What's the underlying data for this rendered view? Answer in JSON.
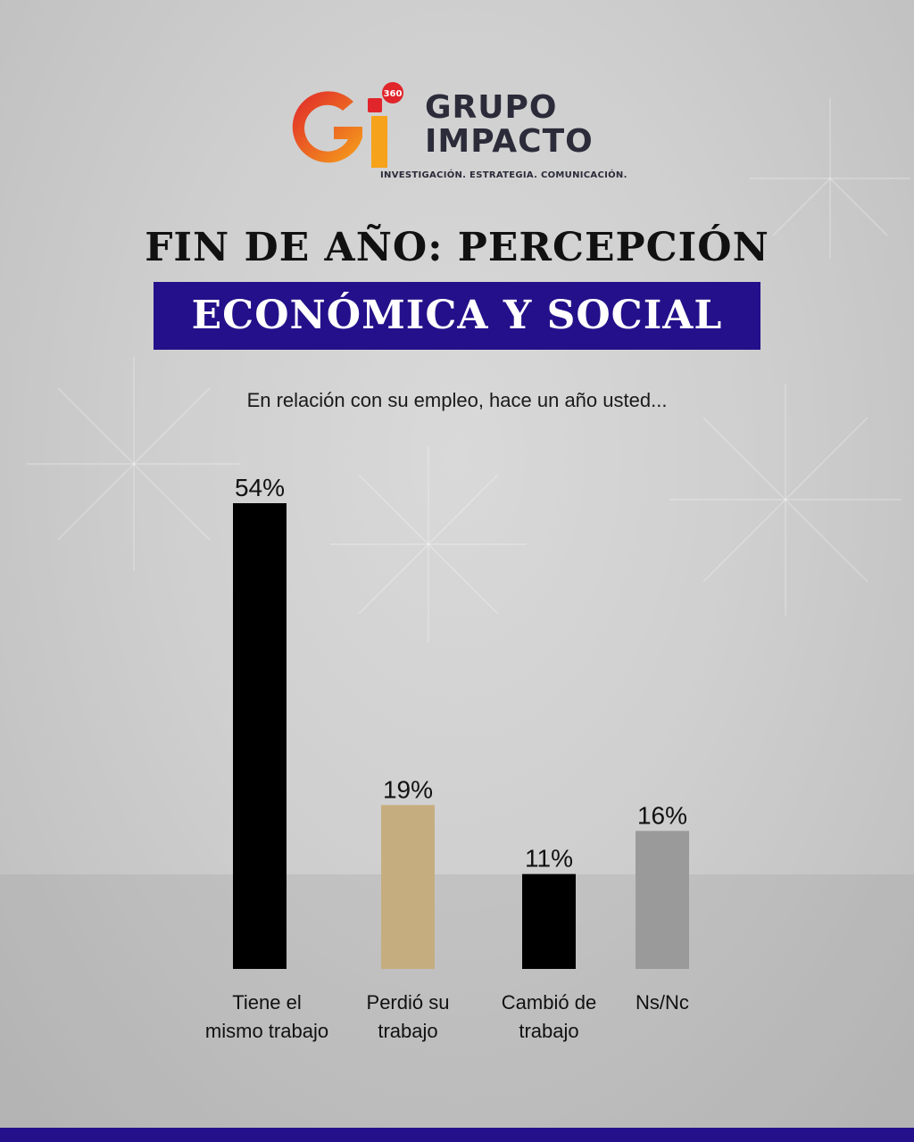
{
  "logo": {
    "badge": "360",
    "line1": "GRUPO",
    "line2": "IMPACTO",
    "tagline": "INVESTIGACIÓN. ESTRATEGIA. COMUNICACIÓN."
  },
  "header": {
    "title": "FIN DE AÑO: PERCEPCIÓN",
    "banner": "ECONÓMICA Y SOCIAL"
  },
  "colors": {
    "banner": "#24108a",
    "logo_red": "#e0252b",
    "logo_orange": "#f6a21a"
  },
  "chart_data": {
    "type": "bar",
    "title": "En relación con su empleo, hace un año usted...",
    "categories": [
      [
        "Tiene el",
        "mismo trabajo"
      ],
      [
        "Perdió su",
        "trabajo"
      ],
      [
        "Cambió de",
        "trabajo"
      ],
      [
        "Ns/Nc"
      ]
    ],
    "values": [
      54,
      19,
      11,
      16
    ],
    "value_labels": [
      "54%",
      "19%",
      "11%",
      "16%"
    ],
    "bar_colors": [
      "#000000",
      "#c6ad7f",
      "#000000",
      "#9a9a9a"
    ],
    "ylim": [
      0,
      54
    ],
    "grid": false,
    "unit": "%"
  }
}
